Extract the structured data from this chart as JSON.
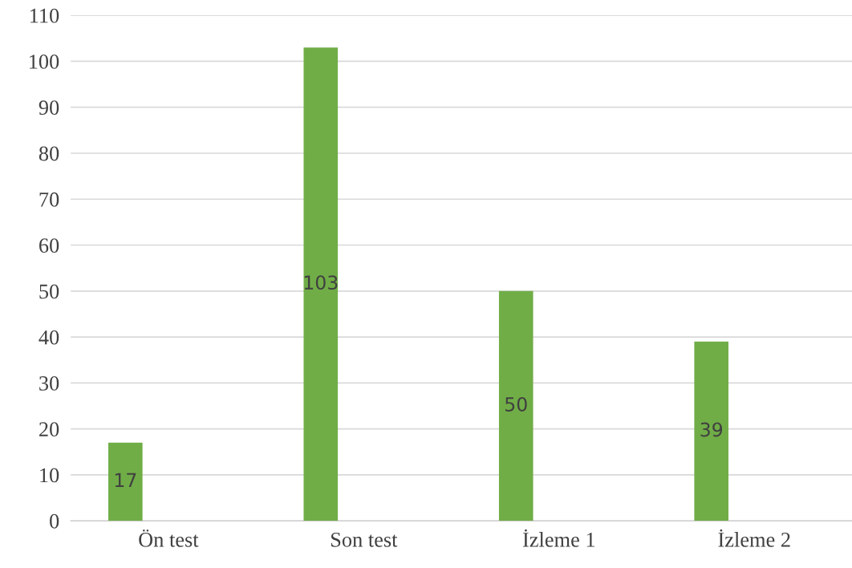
{
  "chart_data": {
    "type": "bar",
    "categories": [
      "Ön test",
      "Son test",
      "İzleme 1",
      "İzleme 2"
    ],
    "values": [
      17,
      103,
      50,
      39
    ],
    "color": "#70ad47",
    "ylim": [
      0,
      110
    ],
    "yticks": [
      0,
      10,
      20,
      30,
      40,
      50,
      60,
      70,
      80,
      90,
      100,
      110
    ],
    "grid": "y",
    "data_labels": true
  }
}
